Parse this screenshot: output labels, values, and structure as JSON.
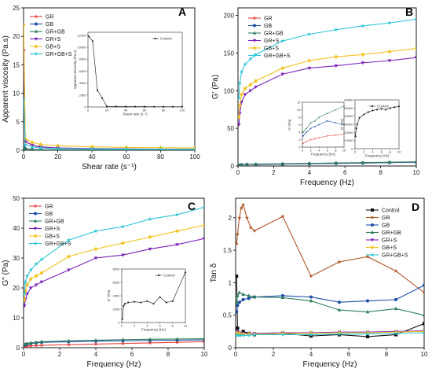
{
  "colors": {
    "GR": "#e8433c",
    "GB": "#1f4fa8",
    "GR+GB": "#2e7d5b",
    "GR+S": "#7b22b8",
    "GB+S": "#f2c21b",
    "GR+GB+S": "#2fc6d8",
    "Control": "#111111",
    "GR_D": "#b05a2a"
  },
  "chart_data": [
    {
      "panel": "A",
      "type": "line",
      "xlabel": "Shear rate (s⁻¹)",
      "ylabel": "Apparent viscosity (Pa.s)",
      "xlim": [
        0,
        100
      ],
      "ylim": [
        0,
        25
      ],
      "xticks": [
        0,
        20,
        40,
        60,
        80,
        100
      ],
      "yticks": [
        0,
        5,
        10,
        15,
        20,
        25
      ],
      "legend_position": "top-left",
      "series": [
        {
          "name": "GR",
          "x": [
            0.1,
            1,
            5,
            10,
            20,
            40,
            60,
            80,
            100
          ],
          "y": [
            17.5,
            1.5,
            0.9,
            0.5,
            0.35,
            0.25,
            0.2,
            0.18,
            0.15
          ]
        },
        {
          "name": "GB",
          "x": [
            0.1,
            1,
            5,
            10,
            20,
            40,
            60,
            80,
            100
          ],
          "y": [
            0.6,
            0.3,
            0.15,
            0.1,
            0.08,
            0.06,
            0.05,
            0.05,
            0.04
          ]
        },
        {
          "name": "GR+GB",
          "x": [
            0.1,
            1,
            5,
            10,
            20,
            40,
            60,
            80,
            100
          ],
          "y": [
            0.5,
            0.3,
            0.15,
            0.1,
            0.08,
            0.06,
            0.05,
            0.05,
            0.04
          ]
        },
        {
          "name": "GR+S",
          "x": [
            0.1,
            1,
            5,
            10,
            20,
            40,
            60,
            80,
            100
          ],
          "y": [
            17.5,
            1.6,
            0.9,
            0.6,
            0.4,
            0.3,
            0.25,
            0.2,
            0.18
          ]
        },
        {
          "name": "GB+S",
          "x": [
            0.1,
            1,
            5,
            10,
            20,
            40,
            60,
            80,
            100
          ],
          "y": [
            22,
            2.0,
            1.4,
            1.0,
            0.8,
            0.6,
            0.5,
            0.45,
            0.4
          ]
        },
        {
          "name": "GR+GB+S",
          "x": [
            0.1,
            1,
            5,
            10,
            20,
            40,
            60,
            80,
            100
          ],
          "y": [
            9,
            1.0,
            0.6,
            0.4,
            0.3,
            0.22,
            0.2,
            0.18,
            0.15
          ]
        }
      ],
      "inset": {
        "xlabel": "Shear rate (s⁻¹)",
        "ylabel": "Apparent viscosity (Pa.s)",
        "xlim": [
          0,
          100
        ],
        "ylim": [
          0,
          12500
        ],
        "xticks": [
          0,
          20,
          40,
          60,
          80,
          100
        ],
        "yticks": [
          0,
          2000,
          4000,
          6000,
          8000,
          10000,
          12000
        ],
        "series": [
          {
            "name": "Control",
            "x": [
              1,
              5,
              10,
              15,
              20,
              30,
              40,
              50,
              60,
              70,
              80,
              90,
              100
            ],
            "y": [
              11800,
              11000,
              2800,
              1500,
              100,
              80,
              70,
              60,
              60,
              50,
              50,
              50,
              50
            ]
          }
        ]
      }
    },
    {
      "panel": "B",
      "type": "line",
      "xlabel": "Frequency (Hz)",
      "ylabel": "G' (Pa)",
      "xlim": [
        0,
        10
      ],
      "ylim": [
        0,
        210
      ],
      "xticks": [
        0,
        2,
        4,
        6,
        8,
        10
      ],
      "yticks": [
        0,
        50,
        100,
        150,
        200
      ],
      "legend_position": "top-left",
      "series": [
        {
          "name": "GR",
          "x": [
            0.1,
            0.2,
            0.5,
            1,
            2.5,
            4,
            5.5,
            7,
            8.5,
            10
          ],
          "y": [
            1,
            1.5,
            2,
            2,
            2.5,
            3,
            3.5,
            4,
            4.5,
            5
          ]
        },
        {
          "name": "GB",
          "x": [
            0.1,
            0.2,
            0.5,
            1,
            2.5,
            4,
            5.5,
            7,
            8.5,
            10
          ],
          "y": [
            1,
            1.5,
            2,
            2,
            2.5,
            3,
            3.5,
            4,
            4.5,
            5
          ]
        },
        {
          "name": "GR+GB",
          "x": [
            0.1,
            0.2,
            0.5,
            1,
            2.5,
            4,
            5.5,
            7,
            8.5,
            10
          ],
          "y": [
            1,
            1.5,
            2,
            2.5,
            3,
            3.5,
            4,
            4.5,
            5,
            5.5
          ]
        },
        {
          "name": "GR+S",
          "x": [
            0.05,
            0.1,
            0.2,
            0.4,
            0.7,
            1,
            2.5,
            4,
            5.5,
            7,
            8.5,
            10
          ],
          "y": [
            55,
            70,
            85,
            95,
            100,
            105,
            122,
            130,
            133,
            137,
            140,
            144
          ]
        },
        {
          "name": "GB+S",
          "x": [
            0.05,
            0.1,
            0.2,
            0.4,
            0.7,
            1,
            2.5,
            4,
            5.5,
            7,
            8.5,
            10
          ],
          "y": [
            65,
            80,
            95,
            103,
            108,
            113,
            130,
            140,
            145,
            148,
            152,
            156
          ]
        },
        {
          "name": "GR+GB+S",
          "x": [
            0.05,
            0.1,
            0.2,
            0.4,
            0.7,
            1,
            2.5,
            4,
            5.5,
            7,
            8.5,
            10
          ],
          "y": [
            90,
            110,
            125,
            135,
            142,
            148,
            166,
            175,
            181,
            186,
            190,
            195
          ]
        }
      ],
      "insets": [
        {
          "xlabel": "Frequency (Hz)",
          "ylabel": "G' (Pa)",
          "xlim": [
            0,
            10
          ],
          "ylim": [
            0,
            12
          ],
          "xticks": [
            0,
            2,
            4,
            6,
            8,
            10
          ],
          "yticks": [
            0,
            2,
            4,
            6,
            8,
            10,
            12
          ],
          "series": [
            {
              "name": "GR",
              "x": [
                0.2,
                1,
                2,
                3,
                4,
                6,
                8,
                10
              ],
              "y": [
                1,
                1.5,
                2,
                2.2,
                2.5,
                3,
                3.2,
                3.5
              ]
            },
            {
              "name": "GB",
              "x": [
                0.2,
                1,
                2,
                3,
                4,
                6,
                8,
                10
              ],
              "y": [
                3,
                4,
                5,
                5.5,
                6,
                7,
                6.5,
                6
              ]
            },
            {
              "name": "GR+GB",
              "x": [
                0.2,
                1,
                2,
                3,
                4,
                6,
                8,
                10
              ],
              "y": [
                4,
                5,
                6.5,
                7,
                8,
                9,
                10,
                11
              ]
            }
          ]
        },
        {
          "xlabel": "Frequency (Hz)",
          "ylabel": "G' (Pa)",
          "xlim": [
            0,
            10
          ],
          "ylim": [
            0,
            60000
          ],
          "xticks": [
            0,
            2,
            4,
            6,
            8,
            10
          ],
          "yticks": [
            0,
            10000,
            20000,
            30000,
            40000,
            50000,
            60000
          ],
          "series": [
            {
              "name": "Control",
              "x": [
                0.1,
                0.3,
                0.5,
                1,
                2,
                3,
                4,
                5,
                6,
                7,
                8,
                9,
                10
              ],
              "y": [
                15000,
                25000,
                30000,
                38000,
                42000,
                45000,
                47000,
                48000,
                49000,
                48000,
                50000,
                51000,
                52000
              ]
            }
          ]
        }
      ]
    },
    {
      "panel": "C",
      "type": "line",
      "xlabel": "Frequency (Hz)",
      "ylabel": "G\" (Pa)",
      "xlim": [
        0,
        10
      ],
      "ylim": [
        0,
        50
      ],
      "xticks": [
        0,
        2,
        4,
        6,
        8,
        10
      ],
      "yticks": [
        0,
        10,
        20,
        30,
        40,
        50
      ],
      "legend_position": "top-left",
      "series": [
        {
          "name": "GR",
          "x": [
            0.05,
            0.1,
            0.2,
            0.4,
            0.7,
            1,
            2.5,
            4,
            5.5,
            7,
            8.5,
            10
          ],
          "y": [
            0.3,
            0.4,
            0.5,
            0.6,
            0.7,
            0.8,
            1.0,
            1.2,
            1.4,
            1.6,
            1.8,
            2.0
          ]
        },
        {
          "name": "GB",
          "x": [
            0.05,
            0.1,
            0.2,
            0.4,
            0.7,
            1,
            2.5,
            4,
            5.5,
            7,
            8.5,
            10
          ],
          "y": [
            0.8,
            1.0,
            1.2,
            1.4,
            1.6,
            1.8,
            2.0,
            2.2,
            2.3,
            2.4,
            2.5,
            2.6
          ]
        },
        {
          "name": "GR+GB",
          "x": [
            0.05,
            0.1,
            0.2,
            0.4,
            0.7,
            1,
            2.5,
            4,
            5.5,
            7,
            8.5,
            10
          ],
          "y": [
            1.0,
            1.2,
            1.4,
            1.6,
            1.8,
            2.0,
            2.3,
            2.5,
            2.7,
            2.8,
            2.9,
            3.0
          ]
        },
        {
          "name": "GR+S",
          "x": [
            0.05,
            0.1,
            0.2,
            0.4,
            0.7,
            1,
            2.5,
            4,
            5.5,
            7,
            8.5,
            10
          ],
          "y": [
            14,
            16,
            18,
            20,
            21,
            22,
            26,
            30,
            31,
            33,
            34.5,
            36.5
          ]
        },
        {
          "name": "GB+S",
          "x": [
            0.05,
            0.1,
            0.2,
            0.4,
            0.7,
            1,
            2.5,
            4,
            5.5,
            7,
            8.5,
            10
          ],
          "y": [
            16,
            19,
            21,
            23,
            24,
            25,
            30.5,
            33,
            35,
            37,
            39,
            41
          ]
        },
        {
          "name": "GR+GB+S",
          "x": [
            0.05,
            0.1,
            0.2,
            0.4,
            0.7,
            1,
            2.5,
            4,
            5.5,
            7,
            8.5,
            10
          ],
          "y": [
            18,
            22,
            24,
            26,
            28,
            29.5,
            36,
            39,
            40.5,
            43,
            44.5,
            47
          ]
        }
      ],
      "inset": {
        "xlabel": "Frequency (Hz)",
        "ylabel": "G\" (Pa)",
        "xlim": [
          0,
          10
        ],
        "ylim": [
          0,
          8000
        ],
        "xticks": [
          0,
          2,
          4,
          6,
          8,
          10
        ],
        "yticks": [
          0,
          2000,
          4000,
          6000,
          8000
        ],
        "series": [
          {
            "name": "Control",
            "x": [
              0.1,
              0.3,
              0.5,
              1,
              2,
              3,
              4,
              5,
              6,
              7,
              8,
              10
            ],
            "y": [
              500,
              2500,
              2800,
              3000,
              3100,
              3000,
              3200,
              2800,
              3800,
              3000,
              3200,
              7500
            ]
          }
        ]
      }
    },
    {
      "panel": "D",
      "type": "line",
      "xlabel": "Frequency (Hz)",
      "ylabel": "Tan δ",
      "xlim": [
        0,
        10
      ],
      "ylim": [
        0,
        2.3
      ],
      "xticks": [
        0,
        2,
        4,
        6,
        8,
        10
      ],
      "yticks": [
        0.0,
        0.5,
        1.0,
        1.5,
        2.0
      ],
      "legend_position": "top-right",
      "series": [
        {
          "name": "Control",
          "x": [
            0.05,
            0.1,
            0.2,
            0.4,
            0.7,
            1,
            2.5,
            4,
            5.5,
            7,
            8.5,
            10
          ],
          "y": [
            1.1,
            0.3,
            0.2,
            0.25,
            0.22,
            0.2,
            0.22,
            0.18,
            0.2,
            0.17,
            0.2,
            0.37
          ]
        },
        {
          "name": "GR",
          "x": [
            0.05,
            0.1,
            0.2,
            0.3,
            0.4,
            0.6,
            0.8,
            1,
            2.5,
            4,
            5.5,
            7,
            8.5,
            10
          ],
          "y": [
            1.6,
            1.75,
            2.0,
            2.15,
            2.2,
            2.0,
            1.85,
            1.8,
            2.02,
            1.1,
            1.32,
            1.4,
            1.18,
            0.85
          ]
        },
        {
          "name": "GB",
          "x": [
            0.05,
            0.1,
            0.2,
            0.4,
            0.7,
            1,
            2.5,
            4,
            5.5,
            7,
            8.5,
            10
          ],
          "y": [
            0.55,
            0.65,
            0.7,
            0.74,
            0.76,
            0.78,
            0.8,
            0.78,
            0.7,
            0.72,
            0.74,
            0.96
          ]
        },
        {
          "name": "GR+GB",
          "x": [
            0.05,
            0.1,
            0.2,
            0.4,
            0.7,
            1,
            2.5,
            4,
            5.5,
            7,
            8.5,
            10
          ],
          "y": [
            0.7,
            0.8,
            0.85,
            0.82,
            0.8,
            0.78,
            0.77,
            0.72,
            0.58,
            0.55,
            0.6,
            0.5
          ]
        },
        {
          "name": "GR+S",
          "x": [
            0.05,
            0.1,
            0.2,
            0.4,
            0.7,
            1,
            2.5,
            4,
            5.5,
            7,
            8.5,
            10
          ],
          "y": [
            0.25,
            0.24,
            0.23,
            0.22,
            0.22,
            0.22,
            0.23,
            0.23,
            0.24,
            0.24,
            0.25,
            0.26
          ]
        },
        {
          "name": "GB+S",
          "x": [
            0.05,
            0.1,
            0.2,
            0.4,
            0.7,
            1,
            2.5,
            4,
            5.5,
            7,
            8.5,
            10
          ],
          "y": [
            0.23,
            0.22,
            0.22,
            0.21,
            0.21,
            0.21,
            0.22,
            0.22,
            0.23,
            0.23,
            0.24,
            0.25
          ]
        },
        {
          "name": "GR+GB+S",
          "x": [
            0.05,
            0.1,
            0.2,
            0.4,
            0.7,
            1,
            2.5,
            4,
            5.5,
            7,
            8.5,
            10
          ],
          "y": [
            0.2,
            0.19,
            0.19,
            0.19,
            0.19,
            0.2,
            0.2,
            0.2,
            0.21,
            0.21,
            0.22,
            0.23
          ]
        }
      ]
    }
  ]
}
